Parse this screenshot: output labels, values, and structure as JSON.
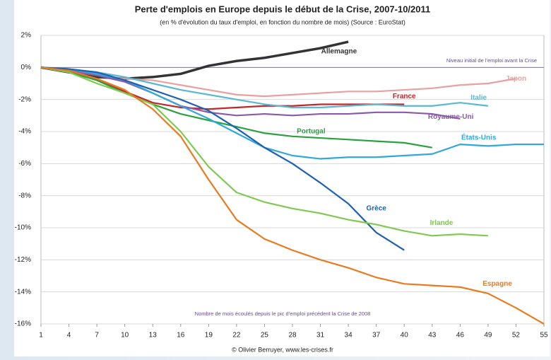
{
  "chart_data": {
    "type": "line",
    "title": "Perte d'emplois en Europe depuis le début de la Crise, 2007-10/2011",
    "subtitle": "(en % d'évolution du taux d'emploi, en fonction du nombre de mois) (Source : EuroStat)",
    "x_label": "Nombre de mois écoulés depuis le pic d'emploi précédent la Crise de 2008",
    "annotations": [
      "Niveau initial de l'emploi avant la Crise",
      "© Olivier Berruyer, www.les-crises.fr"
    ],
    "x": [
      1,
      4,
      7,
      10,
      13,
      16,
      19,
      22,
      25,
      28,
      31,
      34,
      37,
      40,
      43,
      46,
      49,
      52,
      55
    ],
    "xlim": [
      1,
      55
    ],
    "xticks": [
      1,
      4,
      7,
      10,
      13,
      16,
      19,
      22,
      25,
      28,
      31,
      34,
      37,
      40,
      43,
      46,
      49,
      52,
      55
    ],
    "ylim": [
      -16,
      2
    ],
    "yticks": [
      {
        "value": 2,
        "label": "2%"
      },
      {
        "value": 0,
        "label": "0%"
      },
      {
        "value": -2,
        "label": "-2%"
      },
      {
        "value": -4,
        "label": "-4%"
      },
      {
        "value": -6,
        "label": "-6%"
      },
      {
        "value": -8,
        "label": "-8%"
      },
      {
        "value": -10,
        "label": "-10%"
      },
      {
        "value": -12,
        "label": "-12%"
      },
      {
        "value": -14,
        "label": "-14%"
      },
      {
        "value": -16,
        "label": "-16%"
      }
    ],
    "grid": true,
    "series": [
      {
        "name": "Allemagne",
        "color": "#333333",
        "values": [
          0,
          -0.3,
          -0.6,
          -0.7,
          -0.6,
          -0.4,
          0.1,
          0.4,
          0.6,
          0.9,
          1.2,
          1.6,
          null,
          null,
          null,
          null,
          null,
          null,
          null
        ]
      },
      {
        "name": "Japon",
        "color": "#e8a0a0",
        "values": [
          0,
          -0.2,
          -0.5,
          -0.7,
          -0.8,
          -1.1,
          -1.4,
          -1.7,
          -1.8,
          -1.7,
          -1.6,
          -1.5,
          -1.5,
          -1.4,
          -1.3,
          -1.1,
          -1.0,
          -0.7,
          null
        ]
      },
      {
        "name": "France",
        "color": "#c0282c",
        "values": [
          0,
          -0.2,
          -0.8,
          -1.5,
          -2.2,
          -2.5,
          -2.6,
          -2.5,
          -2.4,
          -2.4,
          -2.3,
          -2.3,
          -2.3,
          -2.3,
          null,
          null,
          null,
          null,
          null
        ]
      },
      {
        "name": "Italie",
        "color": "#5bb8d0",
        "values": [
          0,
          -0.1,
          -0.3,
          -0.6,
          -1.0,
          -1.4,
          -1.7,
          -2.0,
          -2.3,
          -2.5,
          -2.5,
          -2.4,
          -2.3,
          -2.4,
          -2.4,
          -2.2,
          -2.4,
          null,
          null
        ]
      },
      {
        "name": "Royaume-Uni",
        "color": "#8a5aa8",
        "values": [
          0,
          -0.2,
          -0.5,
          -0.9,
          -1.6,
          -2.4,
          -2.8,
          -3.0,
          -2.9,
          -3.0,
          -2.9,
          -2.9,
          -2.8,
          -2.8,
          -2.9,
          -3.2,
          null,
          null,
          null
        ]
      },
      {
        "name": "Portugal",
        "color": "#2ca040",
        "values": [
          0,
          -0.3,
          -0.8,
          -1.6,
          -2.3,
          -2.9,
          -3.3,
          -3.7,
          -4.1,
          -4.3,
          -4.4,
          -4.5,
          -4.6,
          -4.7,
          -5.0,
          null,
          null,
          null,
          null
        ]
      },
      {
        "name": "États-Unis",
        "color": "#30a8d8",
        "values": [
          0,
          -0.1,
          -0.4,
          -0.8,
          -1.6,
          -2.4,
          -3.2,
          -4.1,
          -5.0,
          -5.5,
          -5.7,
          -5.6,
          -5.6,
          -5.5,
          -5.4,
          -4.8,
          -4.9,
          -4.8,
          -4.8
        ]
      },
      {
        "name": "Grèce",
        "color": "#2060b0",
        "values": [
          0,
          -0.1,
          -0.3,
          -0.8,
          -1.4,
          -2.0,
          -2.7,
          -3.8,
          -5.0,
          -6.0,
          -7.2,
          -8.5,
          -10.3,
          -11.4,
          null,
          null,
          null,
          null,
          null
        ]
      },
      {
        "name": "Irlande",
        "color": "#80c850",
        "values": [
          0,
          -0.3,
          -1.0,
          -1.6,
          -2.3,
          -4.0,
          -6.2,
          -7.8,
          -8.4,
          -8.8,
          -9.1,
          -9.5,
          -9.8,
          -10.2,
          -10.5,
          -10.4,
          -10.5,
          null,
          null
        ]
      },
      {
        "name": "Espagne",
        "color": "#e87a20",
        "values": [
          0,
          -0.2,
          -0.7,
          -1.4,
          -2.6,
          -4.3,
          -7.0,
          -9.5,
          -10.7,
          -11.4,
          -12.0,
          -12.5,
          -13.1,
          -13.5,
          -13.6,
          -13.7,
          -14.1,
          -15.0,
          -16.0
        ]
      }
    ]
  }
}
